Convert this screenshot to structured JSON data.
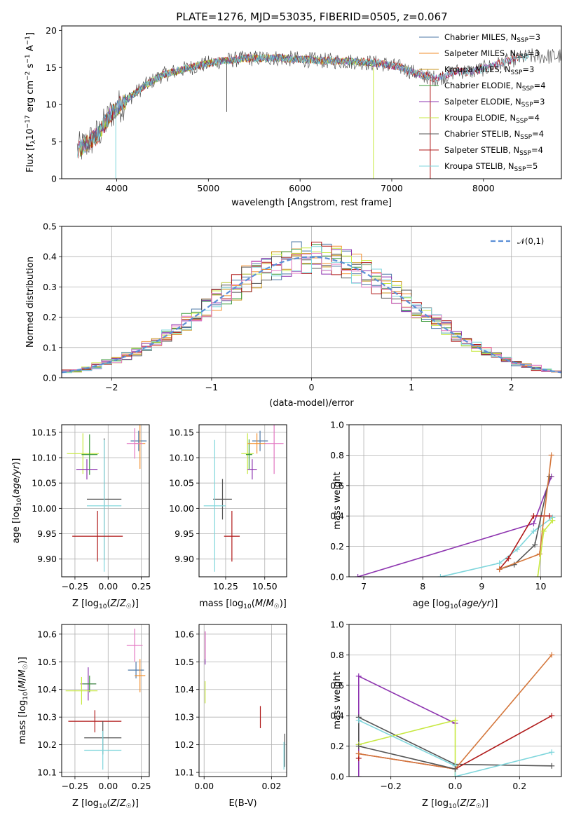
{
  "title": "PLATE=1276, MJD=53035, FIBERID=0505, z=0.067",
  "colors": {
    "chabrier_miles": "#4e79a7",
    "salpeter_miles": "#f28e2b",
    "kroupa_miles": "#c8961c",
    "chabrier_elodie": "#3a9a3a",
    "salpeter_elodie": "#8e35b0",
    "kroupa_elodie": "#c7e840",
    "chabrier_stelib": "#555555",
    "salpeter_stelib": "#b01a1a",
    "kroupa_stelib": "#7fd6dc",
    "pink_model": "#e377c2",
    "orange_model": "#d4773c",
    "normal_curve": "#5b8fd6"
  },
  "chart_data": [
    {
      "id": "spectrum",
      "type": "line",
      "xlabel": "wavelength [Angstrom, rest frame]",
      "ylabel": "Flux [f_λ10^-17 erg cm^-2 s^-1 A^-1]",
      "xlim": [
        3400,
        8850
      ],
      "ylim": [
        0,
        20.6
      ],
      "xticks": [
        4000,
        5000,
        6000,
        7000,
        8000
      ],
      "yticks": [
        0,
        5,
        10,
        15,
        20
      ],
      "legend": [
        "Chabrier MILES, N_SSP=3",
        "Salpeter MILES, N_SSP=3",
        "Kroupa MILES, N_SSP=3",
        "Chabrier ELODIE, N_SSP=4",
        "Salpeter ELODIE, N_SSP=3",
        "Kroupa ELODIE, N_SSP=4",
        "Chabrier STELIB, N_SSP=4",
        "Salpeter STELIB, N_SSP=4",
        "Kroupa STELIB, N_SSP=5"
      ],
      "legend_placement": "top-right",
      "continuum_x": [
        3600,
        3800,
        3950,
        4100,
        4300,
        4500,
        4800,
        5100,
        5400,
        5700,
        6000,
        6300,
        6600,
        6900,
        7100,
        7300,
        7500,
        7700,
        7900,
        8100,
        8300,
        8500
      ],
      "continuum_y": [
        4,
        6,
        9,
        10.5,
        12.5,
        14,
        15,
        15.8,
        16.2,
        16.3,
        16.1,
        15.9,
        15.8,
        15.5,
        15,
        14,
        13.5,
        14.5,
        14.5,
        15.2,
        16,
        16.5
      ],
      "grid": false
    },
    {
      "id": "residuals",
      "type": "histogram",
      "xlabel": "(data-model)/error",
      "ylabel": "Normed distribution",
      "xlim": [
        -2.5,
        2.5
      ],
      "ylim": [
        0,
        0.5
      ],
      "xticks": [
        -2,
        -1,
        0,
        1,
        2
      ],
      "yticks": [
        0,
        0.1,
        0.2,
        0.3,
        0.4,
        0.5
      ],
      "bin_edges_start": -2.5,
      "bin_width": 0.1,
      "legend": [
        "𝒩(0,1)"
      ],
      "legend_placement": "top-right",
      "grid": true
    },
    {
      "id": "age_vs_Z",
      "type": "errorbar",
      "xlabel": "Z [log10(Z/Z☉)]",
      "ylabel": "age [log10(age/yr)]",
      "xlim": [
        -0.35,
        0.31
      ],
      "ylim": [
        9.865,
        10.165
      ],
      "xticks": [
        -0.25,
        0.0,
        0.25
      ],
      "yticks": [
        9.9,
        9.95,
        10.0,
        10.05,
        10.1,
        10.15
      ],
      "grid": true,
      "points": [
        {
          "color": "kroupa_elodie",
          "x": -0.19,
          "xerr": 0.12,
          "y": 10.108,
          "yerr": 0.04
        },
        {
          "color": "chabrier_elodie",
          "x": -0.14,
          "xerr": 0.06,
          "y": 10.106,
          "yerr": 0.04
        },
        {
          "color": "salpeter_elodie",
          "x": -0.16,
          "xerr": 0.08,
          "y": 10.077,
          "yerr": 0.02
        },
        {
          "color": "chabrier_stelib",
          "x": -0.03,
          "xerr": 0.13,
          "y": 10.018,
          "yerr": 0.12
        },
        {
          "color": "kroupa_stelib",
          "x": -0.03,
          "xerr": 0.13,
          "y": 10.005,
          "yerr": 0.13
        },
        {
          "color": "salpeter_stelib",
          "x": -0.08,
          "xerr": 0.19,
          "y": 9.945,
          "yerr": 0.05
        },
        {
          "color": "chabrier_miles",
          "x": 0.23,
          "xerr": 0.06,
          "y": 10.133,
          "yerr": 0.02
        },
        {
          "color": "salpeter_miles",
          "x": 0.24,
          "xerr": 0.04,
          "y": 10.128,
          "yerr": 0.05
        },
        {
          "color": "pink_model",
          "x": 0.2,
          "xerr": 0.06,
          "y": 10.128,
          "yerr": 0.03
        }
      ]
    },
    {
      "id": "age_vs_mass",
      "type": "errorbar",
      "xlabel": "mass [log10(M/M☉)]",
      "ylabel": "",
      "xlim": [
        10.08,
        10.64
      ],
      "ylim": [
        9.865,
        10.165
      ],
      "xticks": [
        10.25,
        10.5
      ],
      "yticks": [
        9.9,
        9.95,
        10.0,
        10.05,
        10.1,
        10.15
      ],
      "grid": true,
      "points": [
        {
          "color": "kroupa_elodie",
          "x": 10.39,
          "xerr": 0.04,
          "y": 10.108,
          "yerr": 0.04
        },
        {
          "color": "chabrier_elodie",
          "x": 10.4,
          "xerr": 0.02,
          "y": 10.106,
          "yerr": 0.03
        },
        {
          "color": "salpeter_elodie",
          "x": 10.42,
          "xerr": 0.03,
          "y": 10.077,
          "yerr": 0.02
        },
        {
          "color": "chabrier_stelib",
          "x": 10.23,
          "xerr": 0.06,
          "y": 10.018,
          "yerr": 0.04
        },
        {
          "color": "kroupa_stelib",
          "x": 10.18,
          "xerr": 0.07,
          "y": 10.005,
          "yerr": 0.13
        },
        {
          "color": "salpeter_stelib",
          "x": 10.29,
          "xerr": 0.05,
          "y": 9.945,
          "yerr": 0.05
        },
        {
          "color": "chabrier_miles",
          "x": 10.47,
          "xerr": 0.05,
          "y": 10.133,
          "yerr": 0.02
        },
        {
          "color": "salpeter_miles",
          "x": 10.45,
          "xerr": 0.06,
          "y": 10.128,
          "yerr": 0.02
        },
        {
          "color": "pink_model",
          "x": 10.56,
          "xerr": 0.06,
          "y": 10.128,
          "yerr": 0.06
        }
      ]
    },
    {
      "id": "weight_vs_age",
      "type": "line",
      "xlabel": "age [log10(age/yr)]",
      "ylabel": "mass weight",
      "xlim": [
        6.75,
        10.35
      ],
      "ylim": [
        0,
        1
      ],
      "xticks": [
        7,
        8,
        9,
        10
      ],
      "yticks": [
        0,
        0.2,
        0.4,
        0.6,
        0.8,
        1.0
      ],
      "grid": true,
      "series": [
        {
          "color": "salpeter_elodie",
          "x": [
            6.9,
            9.88,
            10.18
          ],
          "y": [
            0.0,
            0.35,
            0.66
          ]
        },
        {
          "color": "kroupa_stelib",
          "x": [
            8.3,
            9.3,
            9.6,
            9.88,
            10.2
          ],
          "y": [
            0.0,
            0.09,
            0.18,
            0.3,
            0.39
          ]
        },
        {
          "color": "chabrier_stelib",
          "x": [
            9.3,
            9.55,
            9.9,
            10.15
          ],
          "y": [
            0.05,
            0.08,
            0.21,
            0.66
          ]
        },
        {
          "color": "salpeter_stelib",
          "x": [
            9.3,
            9.45,
            9.88,
            10.15
          ],
          "y": [
            0.05,
            0.12,
            0.4,
            0.4
          ]
        },
        {
          "color": "orange_model",
          "x": [
            9.3,
            9.98,
            10.18
          ],
          "y": [
            0.05,
            0.15,
            0.8
          ]
        },
        {
          "color": "kroupa_elodie",
          "x": [
            9.95,
            10.05,
            10.2
          ],
          "y": [
            0.0,
            0.3,
            0.37
          ]
        }
      ]
    },
    {
      "id": "mass_vs_Z",
      "type": "errorbar",
      "xlabel": "Z [log10(Z/Z☉)]",
      "ylabel": "mass [log10(M/M☉)]",
      "xlim": [
        -0.35,
        0.31
      ],
      "ylim": [
        10.085,
        10.635
      ],
      "xticks": [
        -0.25,
        0.0,
        0.25
      ],
      "yticks": [
        10.1,
        10.2,
        10.3,
        10.4,
        10.5,
        10.6
      ],
      "grid": true,
      "points": [
        {
          "color": "pink_model",
          "x": 0.2,
          "xerr": 0.06,
          "y": 10.56,
          "yerr": 0.06
        },
        {
          "color": "chabrier_miles",
          "x": 0.21,
          "xerr": 0.06,
          "y": 10.47,
          "yerr": 0.03
        },
        {
          "color": "salpeter_miles",
          "x": 0.24,
          "xerr": 0.04,
          "y": 10.45,
          "yerr": 0.06
        },
        {
          "color": "salpeter_elodie",
          "x": -0.15,
          "xerr": 0.06,
          "y": 10.42,
          "yerr": 0.06
        },
        {
          "color": "chabrier_elodie",
          "x": -0.14,
          "xerr": 0.05,
          "y": 10.42,
          "yerr": 0.03
        },
        {
          "color": "kroupa_elodie",
          "x": -0.2,
          "xerr": 0.12,
          "y": 10.395,
          "yerr": 0.05
        },
        {
          "color": "salpeter_stelib",
          "x": -0.1,
          "xerr": 0.2,
          "y": 10.285,
          "yerr": 0.04
        },
        {
          "color": "chabrier_stelib",
          "x": -0.04,
          "xerr": 0.14,
          "y": 10.225,
          "yerr": 0.06
        },
        {
          "color": "kroupa_stelib",
          "x": -0.04,
          "xerr": 0.14,
          "y": 10.18,
          "yerr": 0.07
        }
      ]
    },
    {
      "id": "mass_vs_ebv",
      "type": "errorbar",
      "xlabel": "E(B-V)",
      "ylabel": "",
      "xlim": [
        -0.0015,
        0.0245
      ],
      "ylim": [
        10.085,
        10.635
      ],
      "xticks": [
        0.0,
        0.02
      ],
      "yticks": [
        10.1,
        10.2,
        10.3,
        10.4,
        10.5,
        10.6
      ],
      "grid": true,
      "points": [
        {
          "color": "salpeter_elodie",
          "x": 0.0003,
          "xerr": 0,
          "y": 10.55,
          "yerr": 0.06
        },
        {
          "color": "pink_model",
          "x": 0.0003,
          "xerr": 0,
          "y": 10.56,
          "yerr": 0.05
        },
        {
          "color": "kroupa_elodie",
          "x": 0.0003,
          "xerr": 0,
          "y": 10.39,
          "yerr": 0.04
        },
        {
          "color": "salpeter_stelib",
          "x": 0.0167,
          "xerr": 0,
          "y": 10.3,
          "yerr": 0.04
        },
        {
          "color": "chabrier_stelib",
          "x": 0.0239,
          "xerr": 0,
          "y": 10.18,
          "yerr": 0.06
        },
        {
          "color": "kroupa_stelib",
          "x": 0.0237,
          "xerr": 0,
          "y": 10.16,
          "yerr": 0.05
        }
      ]
    },
    {
      "id": "weight_vs_Z",
      "type": "line",
      "xlabel": "Z [log10(Z/Z☉)]",
      "ylabel": "mass weight",
      "xlim": [
        -0.33,
        0.33
      ],
      "ylim": [
        0,
        1
      ],
      "xticks": [
        -0.2,
        0.0,
        0.2
      ],
      "yticks": [
        0,
        0.2,
        0.4,
        0.6,
        0.8,
        1.0
      ],
      "grid": true,
      "series": [
        {
          "color": "salpeter_elodie",
          "x": [
            -0.3,
            -0.3,
            0.0
          ],
          "y": [
            0.0,
            0.66,
            0.35
          ]
        },
        {
          "color": "chabrier_stelib",
          "x": [
            -0.3,
            -0.3,
            0.0,
            0.3
          ],
          "y": [
            0.21,
            0.39,
            0.08,
            0.07
          ]
        },
        {
          "color": "kroupa_elodie",
          "x": [
            -0.3,
            0.0,
            0.0
          ],
          "y": [
            0.21,
            0.37,
            0.0
          ]
        },
        {
          "color": "kroupa_stelib",
          "x": [
            -0.3,
            0.0,
            0.0,
            0.3
          ],
          "y": [
            0.37,
            0.07,
            0.0,
            0.16
          ]
        },
        {
          "color": "salpeter_stelib",
          "x": [
            -0.3,
            -0.3,
            0.0,
            0.3
          ],
          "y": [
            0.12,
            0.15,
            0.05,
            0.4
          ]
        },
        {
          "color": "orange_model",
          "x": [
            -0.3,
            0.0,
            0.3
          ],
          "y": [
            0.15,
            0.05,
            0.8
          ]
        },
        {
          "color": "chabrier_stelib",
          "x": [
            -0.3,
            0.0
          ],
          "y": [
            0.2,
            0.05
          ]
        }
      ]
    }
  ]
}
